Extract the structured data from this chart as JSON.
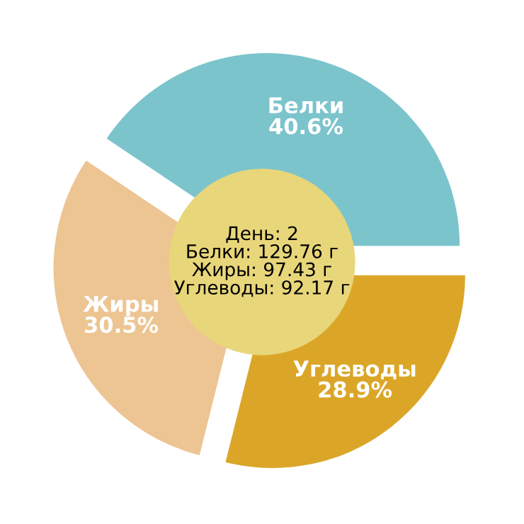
{
  "chart_data": {
    "type": "pie",
    "categories": [
      "Белки",
      "Жиры",
      "Углеводы"
    ],
    "values": [
      40.6,
      30.5,
      28.9
    ],
    "colors": [
      "#7cc4cc",
      "#ecc592",
      "#dba628"
    ],
    "value_labels": [
      "40.6%",
      "30.5%",
      "28.9%"
    ],
    "annotations": [
      "День: 2",
      "Белки: 129.76 г",
      "Жиры: 97.43 г",
      "Углеводы: 92.17 г"
    ],
    "legend": false
  }
}
